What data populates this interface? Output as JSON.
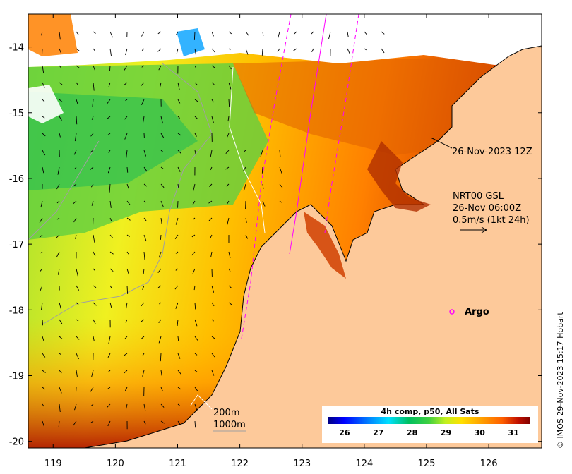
{
  "map": {
    "lon_range": [
      118.6,
      126.85
    ],
    "lat_range": [
      -20.1,
      -13.5
    ],
    "lon_ticks": [
      119,
      120,
      121,
      122,
      123,
      124,
      125,
      126
    ],
    "lat_ticks": [
      -14,
      -15,
      -16,
      -17,
      -18,
      -19,
      -20
    ],
    "lon_tick_labels": [
      "119",
      "120",
      "121",
      "122",
      "123",
      "124",
      "125",
      "126"
    ],
    "lat_tick_labels": [
      "-14",
      "-15",
      "-16",
      "-17",
      "-18",
      "-19",
      "-20"
    ]
  },
  "annotations": {
    "track_time": "26-Nov-2023 12Z",
    "current_line1": "NRT00 GSL",
    "current_line2": "26-Nov 06:00Z",
    "current_line3": "0.5m/s (1kt 24h)",
    "argo_label": "Argo",
    "isobath_200": "200m",
    "isobath_1000": "1000m"
  },
  "colorbar": {
    "title": "4h comp, p50, All Sats",
    "min": 25.5,
    "max": 31.5,
    "ticks": [
      "26",
      "27",
      "28",
      "29",
      "30",
      "31"
    ],
    "colors": [
      "#00007f",
      "#0000ff",
      "#007fff",
      "#00e0ff",
      "#00c060",
      "#40d040",
      "#a0e030",
      "#f0f020",
      "#ffc000",
      "#ff8000",
      "#e04000",
      "#b01000",
      "#800000"
    ]
  },
  "credit": "© IMOS 29-Nov-2023 15:17 Hobart",
  "colors": {
    "land": "#fdc99a",
    "coastline": "#000000",
    "track": "#ff00ff",
    "isobath_200": "#ffffff",
    "isobath_1000": "#a0a0a0",
    "no_data": "#ffffff"
  }
}
